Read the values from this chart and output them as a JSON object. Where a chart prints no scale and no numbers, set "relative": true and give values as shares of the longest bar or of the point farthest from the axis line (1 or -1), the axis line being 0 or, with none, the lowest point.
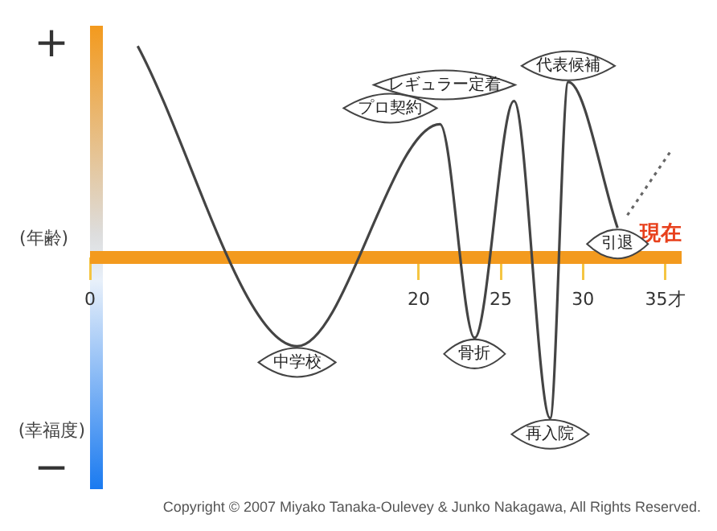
{
  "chart_data": {
    "type": "line",
    "xlabel": "(年齢)",
    "ylabel": "(幸福度)",
    "relative": true,
    "xlim": [
      0,
      36
    ],
    "xticks": [
      0,
      20,
      25,
      30,
      {
        "value": 35,
        "label": "35才"
      }
    ],
    "series": [
      {
        "color": "#444444",
        "x": [
          2.9,
          12.6,
          21.3,
          23.4,
          25.8,
          28.0,
          29.1,
          32.1
        ],
        "values": [
          1,
          -0.42,
          0.63,
          -0.38,
          0.74,
          -0.76,
          0.83,
          0.14
        ]
      },
      {
        "color": "#666666",
        "line_style": "dotted",
        "x": [
          32.7,
          35.4
        ],
        "values": [
          0.2,
          0.51
        ]
      }
    ],
    "annotations": [
      "+",
      "−",
      "Copyright © 2007 Miyako Tanaka-Oulevey & Junko Nakagawa, All Rights Reserved.",
      {
        "text": "中学校",
        "x": 12.6,
        "y": -0.42
      },
      {
        "text": "プロ契約",
        "x": 21.3,
        "y": 0.63
      },
      {
        "text": "骨折",
        "x": 23.4,
        "y": -0.38
      },
      {
        "text": "レギュラー定着",
        "x": 25.8,
        "y": 0.74
      },
      {
        "text": "再入院",
        "x": 28.0,
        "y": -0.76
      },
      {
        "text": "代表候補",
        "x": 29.1,
        "y": 0.83
      },
      {
        "text": "引退",
        "x": 32.1,
        "y": 0.14
      },
      "現在"
    ]
  }
}
